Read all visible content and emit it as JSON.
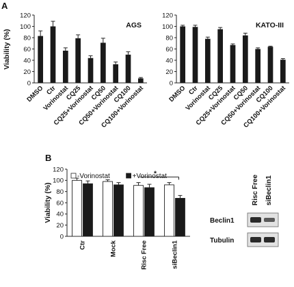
{
  "panel_labels": [
    "A",
    "B"
  ],
  "chart_data": [
    {
      "type": "bar",
      "panel": "A",
      "title": "AGS",
      "ylabel": "Viability (%)",
      "ylim": [
        0,
        120
      ],
      "yticks": [
        0,
        20,
        40,
        60,
        80,
        100,
        120
      ],
      "categories": [
        "DMSO",
        "Ctr",
        "Vorinostat",
        "CQ25",
        "CQ25+Vorinostat",
        "CQ50",
        "CQ50+Vorinostat",
        "CQ100",
        "CQ100+Vorinostat"
      ],
      "values": [
        83,
        100,
        57,
        79,
        44,
        71,
        33,
        50,
        8
      ],
      "errors": [
        9,
        9,
        5,
        6,
        4,
        8,
        4,
        5,
        1.5
      ],
      "bar_color": "#1a1a1a"
    },
    {
      "type": "bar",
      "panel": "A",
      "title": "KATO-III",
      "ylabel": "",
      "ylim": [
        0,
        120
      ],
      "yticks": [
        0,
        20,
        40,
        60,
        80,
        100,
        120
      ],
      "categories": [
        "DMSO",
        "Ctr",
        "Vorinostat",
        "CQ25",
        "CQ25+Vorinostat",
        "CQ50",
        "CQ50+Vorinostat",
        "CQ100",
        "CQ100+Vorinostat"
      ],
      "values": [
        100,
        99,
        78,
        95,
        67,
        84,
        60,
        64,
        41
      ],
      "errors": [
        2,
        3,
        3,
        3,
        2,
        4,
        2,
        1,
        2
      ],
      "bar_color": "#1a1a1a"
    },
    {
      "type": "bar",
      "panel": "B",
      "title": "",
      "ylabel": "Viability (%)",
      "ylim": [
        0,
        120
      ],
      "yticks": [
        0,
        20,
        40,
        60,
        80,
        100,
        120
      ],
      "categories": [
        "Ctr",
        "Mock",
        "Risc Free",
        "siBeclin1"
      ],
      "series": [
        {
          "name": "-Vorinostat",
          "values": [
            100,
            98,
            91,
            92
          ],
          "errors": [
            4,
            3,
            5,
            4
          ],
          "fill": "#ffffff"
        },
        {
          "name": "+Vorinostat",
          "values": [
            94,
            92,
            87,
            68
          ],
          "errors": [
            5,
            4,
            6,
            5
          ],
          "fill": "#1a1a1a"
        }
      ],
      "legend": "top-left",
      "annotation": "*"
    }
  ],
  "blot": {
    "columns": [
      "Risc Free",
      "siBeclin1"
    ],
    "rows": [
      "Beclin1",
      "Tubulin"
    ]
  }
}
